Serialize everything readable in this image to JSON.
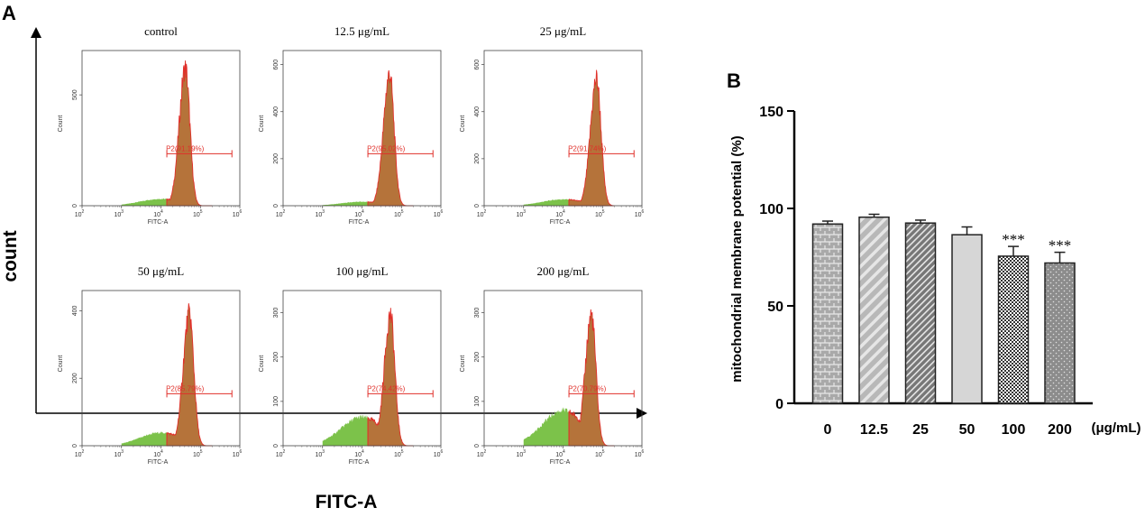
{
  "panel_a_label": "A",
  "panel_b_label": "B",
  "colors": {
    "gated_fill": "#b5733a",
    "ungated_fill": "#7cc24a",
    "outline": "#e0302a",
    "gate_line": "#e0302a",
    "axis": "#000000"
  },
  "chart_data": [
    {
      "type": "histogram",
      "panel": "A",
      "ylabel": "count",
      "xlabel": "FITC-A",
      "panel_xlabel": "FITC-A",
      "panel_ylabel": "Count",
      "x_ticks": [
        {
          "base": "10",
          "exp": "2"
        },
        {
          "base": "10",
          "exp": "3"
        },
        {
          "base": "10",
          "exp": "4"
        },
        {
          "base": "10",
          "exp": "5"
        },
        {
          "base": "10",
          "exp": "6"
        }
      ],
      "xlim_log10": [
        2,
        6
      ],
      "gate_range_log10": [
        4.15,
        5.8
      ],
      "panels": [
        {
          "title": "control",
          "gate_label": "P2(91.19%)",
          "gate_percent": 91.19,
          "y_ticks": [
            "0",
            "500"
          ],
          "ymax": 700,
          "y_tick_values": [
            0,
            500
          ],
          "peak_log10": 4.62,
          "peak_count": 620,
          "left_tail": 0.05
        },
        {
          "title": "12.5 μg/mL",
          "gate_label": "P2(95.02%)",
          "gate_percent": 95.02,
          "y_ticks": [
            "0",
            "200",
            "400",
            "600"
          ],
          "ymax": 660,
          "y_tick_values": [
            0,
            200,
            400,
            600
          ],
          "peak_log10": 4.7,
          "peak_count": 560,
          "left_tail": 0.03
        },
        {
          "title": "25 μg/mL",
          "gate_label": "P2(91.74%)",
          "gate_percent": 91.74,
          "y_ticks": [
            "0",
            "200",
            "400",
            "600"
          ],
          "ymax": 660,
          "y_tick_values": [
            0,
            200,
            400,
            600
          ],
          "peak_log10": 4.85,
          "peak_count": 540,
          "left_tail": 0.05
        },
        {
          "title": "50 μg/mL",
          "gate_label": "P2(85.79%)",
          "gate_percent": 85.79,
          "y_ticks": [
            "0",
            "200",
            "400"
          ],
          "ymax": 460,
          "y_tick_values": [
            0,
            200,
            400
          ],
          "peak_log10": 4.72,
          "peak_count": 390,
          "left_tail": 0.1
        },
        {
          "title": "100 μg/mL",
          "gate_label": "P2(74.42%)",
          "gate_percent": 74.42,
          "y_ticks": [
            "0",
            "100",
            "200",
            "300"
          ],
          "ymax": 350,
          "y_tick_values": [
            0,
            100,
            200,
            300
          ],
          "peak_log10": 4.72,
          "peak_count": 295,
          "left_tail": 0.22
        },
        {
          "title": "200 μg/mL",
          "gate_label": "P2(70.79%)",
          "gate_percent": 70.79,
          "y_ticks": [
            "0",
            "100",
            "200",
            "300"
          ],
          "ymax": 350,
          "y_tick_values": [
            0,
            100,
            200,
            300
          ],
          "peak_log10": 4.72,
          "peak_count": 295,
          "left_tail": 0.27
        }
      ]
    },
    {
      "type": "bar",
      "panel": "B",
      "categories": [
        "0",
        "12.5",
        "25",
        "50",
        "100",
        "200"
      ],
      "values": [
        92,
        95.5,
        92.5,
        86.5,
        75.5,
        72
      ],
      "errors": [
        1.5,
        1.5,
        1.5,
        4,
        5,
        5.5
      ],
      "significance": [
        "",
        "",
        "",
        "",
        "***",
        "***"
      ],
      "patterns": [
        "brick",
        "diag-wide",
        "diag-dense",
        "solid",
        "checker",
        "dots"
      ],
      "ylabel": "mitochondrial membrane potential (%)",
      "xunit": "(μg/mL)",
      "ylim": [
        0,
        150
      ],
      "y_ticks": [
        0,
        50,
        100,
        150
      ]
    }
  ]
}
